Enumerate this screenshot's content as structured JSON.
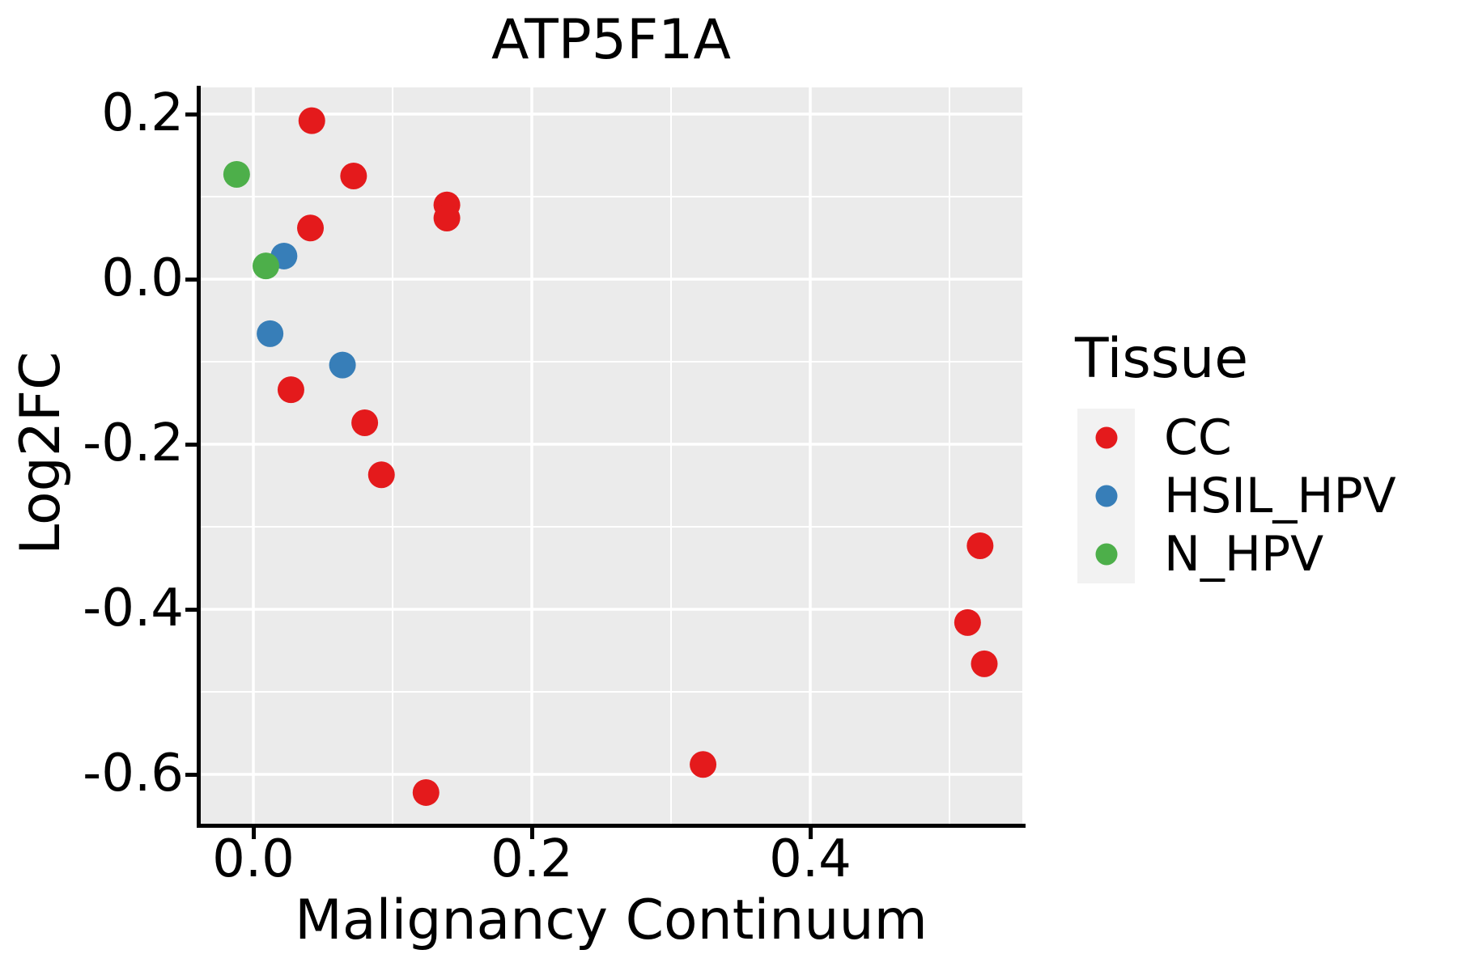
{
  "figure": {
    "title": "ATP5F1A",
    "x_axis_label": "Malignancy Continuum",
    "y_axis_label": "Log2FC"
  },
  "legend": {
    "title": "Tissue",
    "items": [
      {
        "label": "CC",
        "color": "#E41A1C"
      },
      {
        "label": "HSIL_HPV",
        "color": "#377EB8"
      },
      {
        "label": "N_HPV",
        "color": "#4DAF4A"
      }
    ]
  },
  "axes": {
    "x": {
      "tick_labels": [
        "0.0",
        "0.2",
        "0.4"
      ],
      "tick_values": [
        0.0,
        0.2,
        0.4
      ],
      "minor_values": [
        0.1,
        0.3,
        0.5
      ]
    },
    "y": {
      "tick_labels": [
        "0.2",
        "0.0",
        "-0.2",
        "-0.4",
        "-0.6"
      ],
      "tick_values": [
        0.2,
        0.0,
        -0.2,
        -0.4,
        -0.6
      ],
      "minor_values": [
        0.1,
        -0.1,
        -0.3,
        -0.5
      ]
    }
  },
  "colors": {
    "panel_background": "#EBEBEB",
    "grid": "#FFFFFF",
    "axis": "#000000",
    "legend_key_background": "#F2F2F2",
    "cc": "#E41A1C",
    "hsil_hpv": "#377EB8",
    "n_hpv": "#4DAF4A"
  },
  "chart_data": {
    "type": "scatter",
    "title": "ATP5F1A",
    "xlabel": "Malignancy Continuum",
    "ylabel": "Log2FC",
    "xlim": [
      -0.038,
      0.552
    ],
    "ylim": [
      -0.662,
      0.232
    ],
    "grid": true,
    "legend_title": "Tissue",
    "legend_position": "right",
    "series": [
      {
        "name": "CC",
        "color": "#E41A1C",
        "points": [
          [
            0.042,
            0.192
          ],
          [
            0.072,
            0.125
          ],
          [
            0.139,
            0.09
          ],
          [
            0.139,
            0.074
          ],
          [
            0.041,
            0.062
          ],
          [
            0.027,
            -0.134
          ],
          [
            0.08,
            -0.174
          ],
          [
            0.092,
            -0.237
          ],
          [
            0.124,
            -0.622
          ],
          [
            0.323,
            -0.588
          ],
          [
            0.513,
            -0.416
          ],
          [
            0.522,
            -0.323
          ],
          [
            0.525,
            -0.466
          ]
        ]
      },
      {
        "name": "HSIL_HPV",
        "color": "#377EB8",
        "points": [
          [
            0.022,
            0.028
          ],
          [
            0.012,
            -0.066
          ],
          [
            0.064,
            -0.104
          ]
        ]
      },
      {
        "name": "N_HPV",
        "color": "#4DAF4A",
        "points": [
          [
            -0.012,
            0.127
          ],
          [
            0.009,
            0.016
          ]
        ]
      }
    ]
  }
}
